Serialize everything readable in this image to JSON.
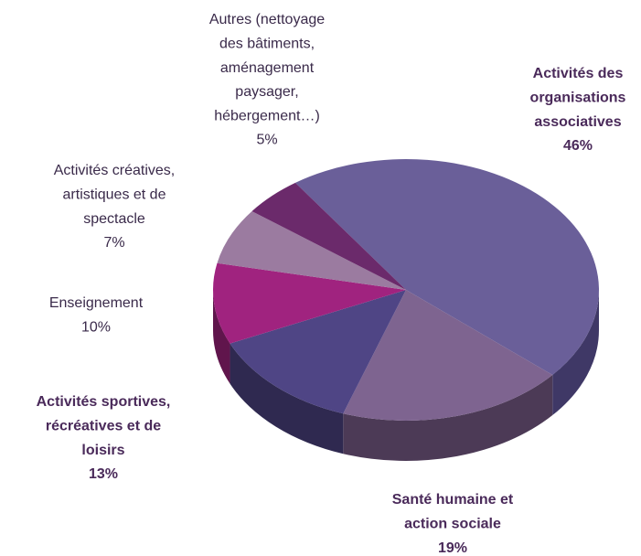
{
  "chart_data": {
    "type": "pie",
    "categories": [
      [
        "Activités des",
        "organisations",
        "associatives"
      ],
      [
        "Santé humaine et",
        "action sociale"
      ],
      [
        "Activités sportives,",
        "récréatives et de",
        "loisirs"
      ],
      [
        "Enseignement"
      ],
      [
        "Activités créatives,",
        "artistiques et de",
        "spectacle"
      ],
      [
        "Autres (nettoyage",
        "des bâtiments,",
        "aménagement",
        "paysager,",
        "hébergement…)"
      ]
    ],
    "values": [
      46,
      19,
      13,
      10,
      7,
      5
    ],
    "value_labels": [
      "46%",
      "19%",
      "13%",
      "10%",
      "7%",
      "5%"
    ],
    "colors": [
      "#6a5f99",
      "#7e6490",
      "#4f4585",
      "#a0237f",
      "#9b7ba0",
      "#6b2a6b"
    ],
    "side_colors": [
      "#3f3866",
      "#4c3a56",
      "#2f2950",
      "#60154c",
      "#5d4a60",
      "#401940"
    ]
  }
}
